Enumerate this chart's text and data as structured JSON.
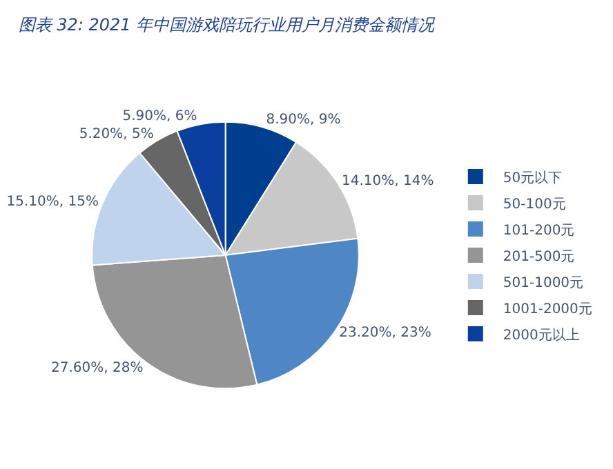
{
  "chart_data": {
    "type": "pie",
    "title": "图表 32: 2021 年中国游戏陪玩行业用户月消费金额情况",
    "categories": [
      "50元以下",
      "50-100元",
      "101-200元",
      "201-500元",
      "501-1000元",
      "1001-2000元",
      "2000元以上"
    ],
    "values": [
      8.9,
      14.1,
      23.2,
      27.6,
      15.1,
      5.2,
      5.9
    ],
    "value_labels": [
      "8.90%, 9%",
      "14.10%, 14%",
      "23.20%, 23%",
      "27.60%, 28%",
      "15.10%, 15%",
      "5.20%, 5%",
      "5.90%, 6%"
    ],
    "colors": [
      "#003f8f",
      "#c8c8c8",
      "#4f86c6",
      "#959595",
      "#c0d3ec",
      "#666666",
      "#0a3fa0"
    ],
    "legend": "right"
  }
}
